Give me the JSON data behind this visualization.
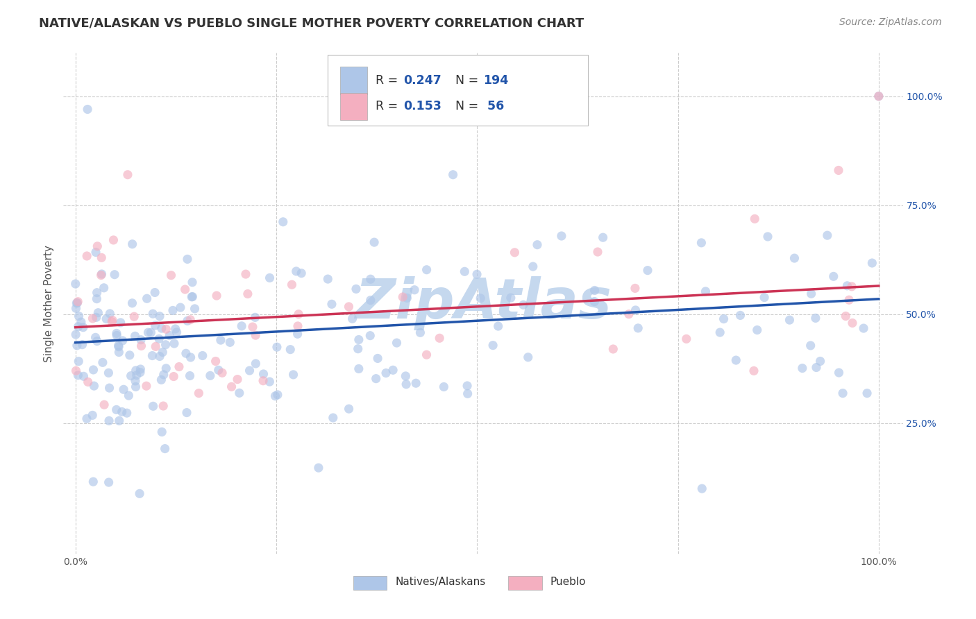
{
  "title": "NATIVE/ALASKAN VS PUEBLO SINGLE MOTHER POVERTY CORRELATION CHART",
  "source": "Source: ZipAtlas.com",
  "ylabel": "Single Mother Poverty",
  "ytick_labels": [
    "25.0%",
    "50.0%",
    "75.0%",
    "100.0%"
  ],
  "ytick_values": [
    0.25,
    0.5,
    0.75,
    1.0
  ],
  "xtick_labels": [
    "0.0%",
    "100.0%"
  ],
  "xtick_values": [
    0.0,
    1.0
  ],
  "legend_blue_label": "Natives/Alaskans",
  "legend_pink_label": "Pueblo",
  "legend_R_blue": "0.247",
  "legend_N_blue": "194",
  "legend_R_pink": "0.153",
  "legend_N_pink": " 56",
  "blue_scatter_color": "#aec6e8",
  "pink_scatter_color": "#f4afc0",
  "blue_line_color": "#2255aa",
  "pink_line_color": "#cc3355",
  "text_blue_color": "#2255aa",
  "background_color": "#ffffff",
  "grid_color": "#cccccc",
  "title_color": "#333333",
  "source_color": "#888888",
  "watermark_text": "ZipAtlas",
  "watermark_color": "#c5d8ee",
  "blue_line_x0": 0.0,
  "blue_line_x1": 1.0,
  "blue_line_y0": 0.435,
  "blue_line_y1": 0.535,
  "pink_line_x0": 0.0,
  "pink_line_x1": 1.0,
  "pink_line_y0": 0.47,
  "pink_line_y1": 0.565,
  "xlim": [
    -0.015,
    1.03
  ],
  "ylim": [
    -0.05,
    1.1
  ],
  "scatter_size": 90,
  "scatter_alpha": 0.65
}
